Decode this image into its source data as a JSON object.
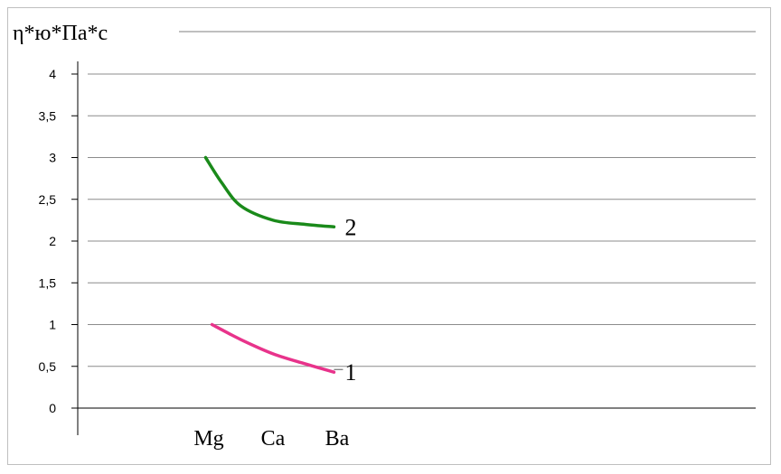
{
  "chart_data": {
    "type": "line",
    "title": "",
    "ylabel": "η*ю*Па*с",
    "xlabel": "",
    "categories": [
      "Mg",
      "Ca",
      "Ba"
    ],
    "yticks": [
      "0",
      "0,5",
      "1",
      "1,5",
      "2",
      "2,5",
      "3",
      "3,5",
      "4"
    ],
    "ylim": [
      0,
      4
    ],
    "grid": true,
    "series": [
      {
        "name": "1",
        "color": "#e8338b",
        "x": [
          1.05,
          1.5,
          2.0,
          2.5,
          2.95
        ],
        "values": [
          1.0,
          0.82,
          0.65,
          0.53,
          0.43
        ]
      },
      {
        "name": "2",
        "color": "#1a8a1a",
        "x": [
          0.95,
          1.2,
          1.5,
          2.0,
          2.5,
          2.95
        ],
        "values": [
          3.0,
          2.7,
          2.42,
          2.25,
          2.2,
          2.17
        ]
      }
    ]
  }
}
